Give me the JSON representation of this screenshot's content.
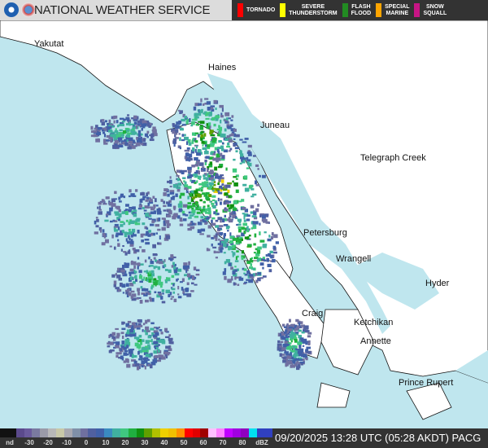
{
  "header": {
    "title": "NATIONAL WEATHER SERVICE",
    "logos": [
      "noaa-logo",
      "nws-logo"
    ]
  },
  "warnings": [
    {
      "label": "TORNADO",
      "color": "#ff0000"
    },
    {
      "label": "SEVERE\nTHUNDERSTORM",
      "color": "#ffff00"
    },
    {
      "label": "FLASH\nFLOOD",
      "color": "#228b22"
    },
    {
      "label": "SPECIAL\nMARINE",
      "color": "#ffa500"
    },
    {
      "label": "SNOW\nSQUALL",
      "color": "#c71585"
    }
  ],
  "map": {
    "sea_color": "#bfe6ee",
    "land_color": "#ffffff",
    "cities": [
      {
        "name": "Yakutat"
      },
      {
        "name": "Haines"
      },
      {
        "name": "Juneau"
      },
      {
        "name": "Telegraph Creek"
      },
      {
        "name": "Petersburg"
      },
      {
        "name": "Wrangell"
      },
      {
        "name": "Hyder"
      },
      {
        "name": "Craig"
      },
      {
        "name": "Ketchikan"
      },
      {
        "name": "Annette"
      },
      {
        "name": "Prince Rupert"
      }
    ]
  },
  "legend": {
    "colors": [
      "#111",
      "#111",
      "#5b4a8c",
      "#6a5a9c",
      "#7a7aa0",
      "#9a9aa8",
      "#b8b8b8",
      "#c8c8a8",
      "#a8a8b0",
      "#8090a8",
      "#7070a0",
      "#5060a0",
      "#4060a8",
      "#3a8ac0",
      "#40b0a0",
      "#40c880",
      "#20b040",
      "#109010",
      "#60a000",
      "#b0c000",
      "#f0d000",
      "#f0c000",
      "#ff9000",
      "#ff0000",
      "#e00000",
      "#a00000",
      "#ffc0ff",
      "#ff80ff",
      "#c000ff",
      "#a000e0",
      "#9000c0",
      "#00e0f0",
      "#3040c0",
      "#3040c0"
    ],
    "ticks": [
      "nd",
      "-30",
      "-20",
      "-10",
      "0",
      "10",
      "20",
      "30",
      "40",
      "50",
      "60",
      "70",
      "80",
      "dBZ"
    ]
  },
  "timestamp": "09/20/2025 13:28 UTC (05:28 AKDT) PACG"
}
